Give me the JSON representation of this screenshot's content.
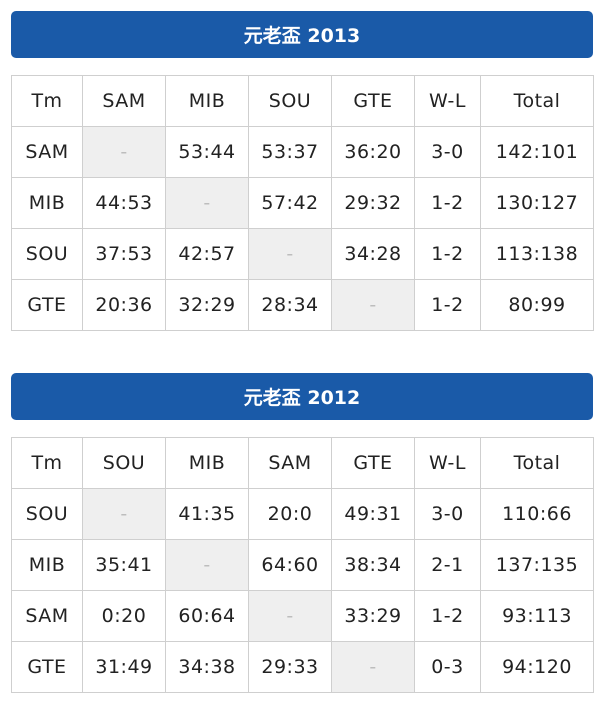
{
  "sections": [
    {
      "title": "元老盃 2013",
      "headers": [
        "Tm",
        "SAM",
        "MIB",
        "SOU",
        "GTE",
        "W-L",
        "Total"
      ],
      "rows": [
        {
          "team": "SAM",
          "cells": [
            "-",
            "53:44",
            "53:37",
            "36:20"
          ],
          "wl": "3-0",
          "total": "142:101"
        },
        {
          "team": "MIB",
          "cells": [
            "44:53",
            "-",
            "57:42",
            "29:32"
          ],
          "wl": "1-2",
          "total": "130:127"
        },
        {
          "team": "SOU",
          "cells": [
            "37:53",
            "42:57",
            "-",
            "34:28"
          ],
          "wl": "1-2",
          "total": "113:138"
        },
        {
          "team": "GTE",
          "cells": [
            "20:36",
            "32:29",
            "28:34",
            "-"
          ],
          "wl": "1-2",
          "total": "80:99"
        }
      ]
    },
    {
      "title": "元老盃 2012",
      "headers": [
        "Tm",
        "SOU",
        "MIB",
        "SAM",
        "GTE",
        "W-L",
        "Total"
      ],
      "rows": [
        {
          "team": "SOU",
          "cells": [
            "-",
            "41:35",
            "20:0",
            "49:31"
          ],
          "wl": "3-0",
          "total": "110:66"
        },
        {
          "team": "MIB",
          "cells": [
            "35:41",
            "-",
            "64:60",
            "38:34"
          ],
          "wl": "2-1",
          "total": "137:135"
        },
        {
          "team": "SAM",
          "cells": [
            "0:20",
            "60:64",
            "-",
            "33:29"
          ],
          "wl": "1-2",
          "total": "93:113"
        },
        {
          "team": "GTE",
          "cells": [
            "31:49",
            "34:38",
            "29:33",
            "-"
          ],
          "wl": "0-3",
          "total": "94:120"
        }
      ]
    }
  ],
  "colors": {
    "banner": "#1a5aa8",
    "self_cell": "#efefef",
    "border": "#cfcfcf"
  }
}
